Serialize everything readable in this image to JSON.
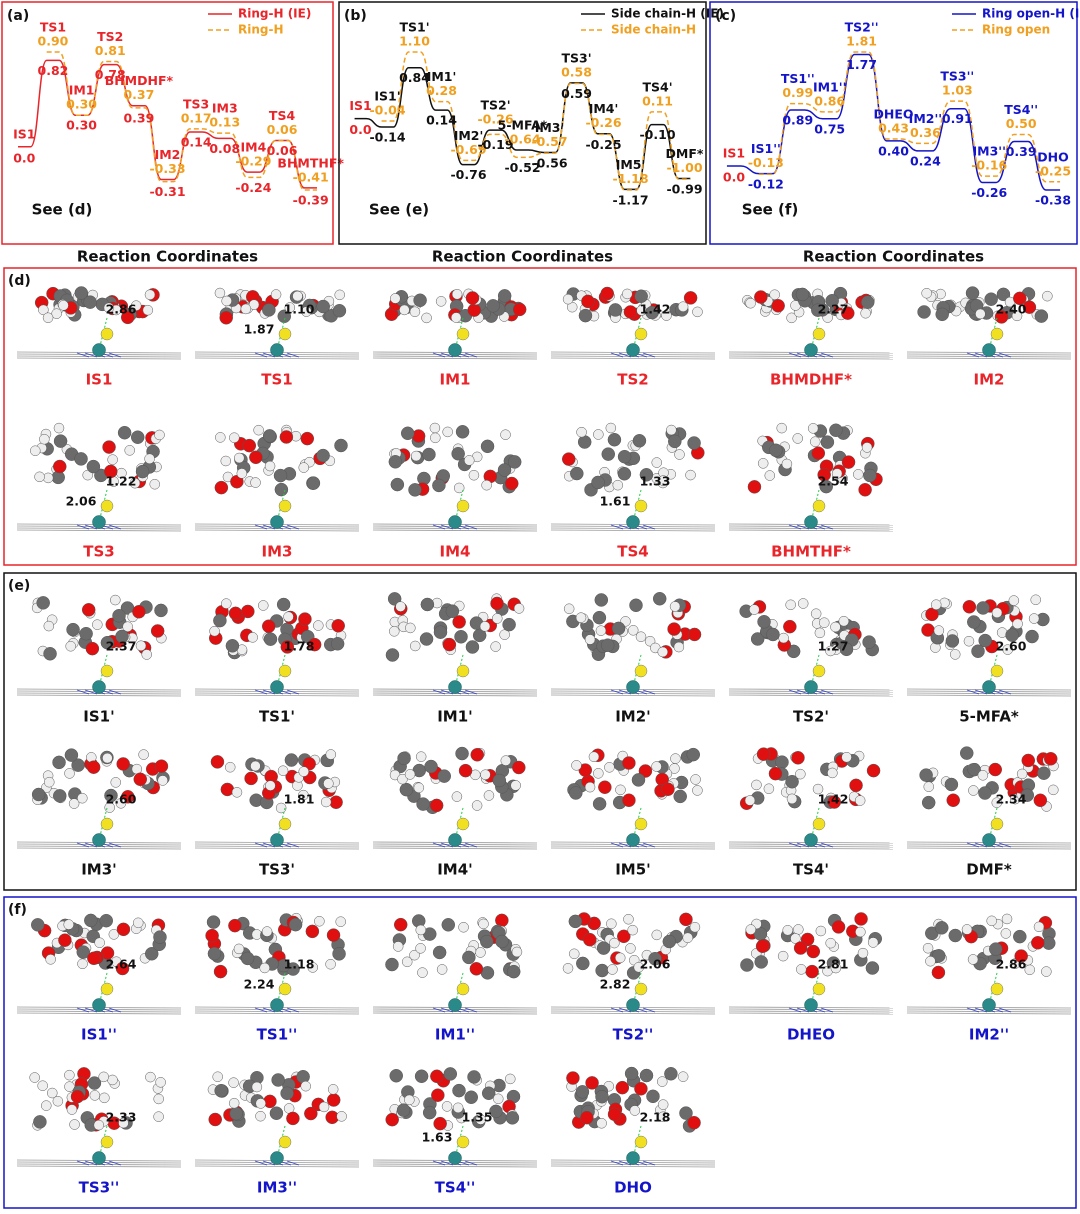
{
  "energy_panels": [
    {
      "letter": "(a)",
      "note": "See (d)",
      "xlabel": "Reaction Coordinates",
      "legend": [
        {
          "name": "Ring-H (IE)",
          "color": "#e8252a",
          "dash": false
        },
        {
          "name": "Ring-H",
          "color": "#f0a020",
          "dash": true
        }
      ],
      "states": [
        {
          "name": "IS1",
          "ie": "0.0"
        },
        {
          "name": "TS1",
          "ie": "0.82",
          "alt": "0.90"
        },
        {
          "name": "IM1",
          "ie": "0.30",
          "alt": "0.30"
        },
        {
          "name": "TS2",
          "ie": "0.78",
          "alt": "0.81"
        },
        {
          "name": "BHMDHF*",
          "ie": "0.39",
          "alt": "0.37"
        },
        {
          "name": "IM2",
          "ie": "-0.31",
          "alt": "-0.33"
        },
        {
          "name": "TS3",
          "ie": "0.14",
          "alt": "0.17"
        },
        {
          "name": "IM3",
          "ie": "0.08",
          "alt": "0.13"
        },
        {
          "name": "IM4",
          "ie": "-0.24",
          "alt": "-0.29"
        },
        {
          "name": "TS4",
          "ie": "0.06",
          "alt": "0.06"
        },
        {
          "name": "BHMTHF*",
          "ie": "-0.39",
          "alt": "-0.41"
        }
      ]
    },
    {
      "letter": "(b)",
      "note": "See (e)",
      "xlabel": "Reaction Coordinates",
      "legend": [
        {
          "name": "Side chain-H (IE)",
          "color": "#111111",
          "dash": false
        },
        {
          "name": "Side chain-H",
          "color": "#f0a020",
          "dash": true
        }
      ],
      "states": [
        {
          "name": "IS1",
          "ie": "0.0",
          "color": "#e8252a"
        },
        {
          "name": "IS1'",
          "ie": "-0.14",
          "alt": "-0.04"
        },
        {
          "name": "TS1'",
          "ie": "0.84",
          "alt": "1.10"
        },
        {
          "name": "IM1'",
          "ie": "0.14",
          "alt": "0.28"
        },
        {
          "name": "IM2'",
          "ie": "-0.76",
          "alt": "-0.69"
        },
        {
          "name": "TS2'",
          "ie": "-0.19",
          "alt": "-0.26"
        },
        {
          "name": "5-MFA*",
          "ie": "-0.52",
          "alt": "-0.64"
        },
        {
          "name": "IM3'",
          "ie": "-0.56",
          "alt": "-0.57"
        },
        {
          "name": "TS3'",
          "ie": "0.59",
          "alt": "0.58"
        },
        {
          "name": "IM4'",
          "ie": "-0.25",
          "alt": "-0.26"
        },
        {
          "name": "IM5'",
          "ie": "-1.17",
          "alt": "-1.18"
        },
        {
          "name": "TS4'",
          "ie": "-0.10",
          "alt": "0.11"
        },
        {
          "name": "DMF*",
          "ie": "-0.99",
          "alt": "-1.00"
        }
      ]
    },
    {
      "letter": "(c)",
      "note": "See (f)",
      "xlabel": "Reaction Coordinates",
      "legend": [
        {
          "name": "Ring open-H (IE)",
          "color": "#1414c8",
          "dash": false
        },
        {
          "name": "Ring open",
          "color": "#f0a020",
          "dash": true
        }
      ],
      "states": [
        {
          "name": "IS1",
          "ie": "0.0",
          "color": "#e8252a"
        },
        {
          "name": "IS1''",
          "ie": "-0.12",
          "alt": "-0.13"
        },
        {
          "name": "TS1''",
          "ie": "0.89",
          "alt": "0.99"
        },
        {
          "name": "IM1''",
          "ie": "0.75",
          "alt": "0.86"
        },
        {
          "name": "TS2''",
          "ie": "1.77",
          "alt": "1.81"
        },
        {
          "name": "DHEO",
          "ie": "0.40",
          "alt": "0.43"
        },
        {
          "name": "IM2''",
          "ie": "0.24",
          "alt": "0.36"
        },
        {
          "name": "TS3''",
          "ie": "0.91",
          "alt": "1.03"
        },
        {
          "name": "IM3''",
          "ie": "-0.26",
          "alt": "-0.16"
        },
        {
          "name": "TS4''",
          "ie": "0.39",
          "alt": "0.50"
        },
        {
          "name": "DHO",
          "ie": "-0.38",
          "alt": "-0.25"
        }
      ]
    }
  ],
  "structure_panels": [
    {
      "letter": "(d)",
      "color": "#e8252a",
      "frame": "#e8252a",
      "items": [
        {
          "label": "IS1",
          "distances": [
            "2.86"
          ]
        },
        {
          "label": "TS1",
          "distances": [
            "1.10",
            "1.87"
          ]
        },
        {
          "label": "IM1",
          "distances": []
        },
        {
          "label": "TS2",
          "distances": [
            "1.42"
          ]
        },
        {
          "label": "BHMDHF*",
          "distances": [
            "2.27"
          ]
        },
        {
          "label": "IM2",
          "distances": [
            "2.40"
          ]
        },
        {
          "label": "TS3",
          "distances": [
            "1.22",
            "2.06"
          ]
        },
        {
          "label": "IM3",
          "distances": []
        },
        {
          "label": "IM4",
          "distances": []
        },
        {
          "label": "TS4",
          "distances": [
            "1.33",
            "1.61"
          ]
        },
        {
          "label": "BHMTHF*",
          "distances": [
            "2.54"
          ]
        }
      ]
    },
    {
      "letter": "(e)",
      "color": "#111111",
      "frame": "#111111",
      "items": [
        {
          "label": "IS1'",
          "distances": [
            "2.37"
          ]
        },
        {
          "label": "TS1'",
          "distances": [
            "1.78"
          ]
        },
        {
          "label": "IM1'",
          "distances": []
        },
        {
          "label": "IM2'",
          "distances": []
        },
        {
          "label": "TS2'",
          "distances": [
            "1.27"
          ]
        },
        {
          "label": "5-MFA*",
          "distances": [
            "2.60"
          ]
        },
        {
          "label": "IM3'",
          "distances": [
            "2.60"
          ]
        },
        {
          "label": "TS3'",
          "distances": [
            "1.81"
          ]
        },
        {
          "label": "IM4'",
          "distances": []
        },
        {
          "label": "IM5'",
          "distances": []
        },
        {
          "label": "TS4'",
          "distances": [
            "1.42"
          ]
        },
        {
          "label": "DMF*",
          "distances": [
            "2.34"
          ]
        }
      ]
    },
    {
      "letter": "(f)",
      "color": "#1414c8",
      "frame": "#1414c8",
      "items": [
        {
          "label": "IS1''",
          "distances": [
            "2.64"
          ]
        },
        {
          "label": "TS1''",
          "distances": [
            "1.18",
            "2.24"
          ]
        },
        {
          "label": "IM1''",
          "distances": []
        },
        {
          "label": "TS2''",
          "distances": [
            "2.06",
            "2.82"
          ]
        },
        {
          "label": "DHEO",
          "distances": [
            "2.81"
          ]
        },
        {
          "label": "IM2''",
          "distances": [
            "2.86"
          ]
        },
        {
          "label": "TS3''",
          "distances": [
            "2.33"
          ]
        },
        {
          "label": "IM3''",
          "distances": []
        },
        {
          "label": "TS4''",
          "distances": [
            "1.35",
            "1.63"
          ]
        },
        {
          "label": "DHO",
          "distances": [
            "2.18"
          ]
        }
      ]
    }
  ]
}
